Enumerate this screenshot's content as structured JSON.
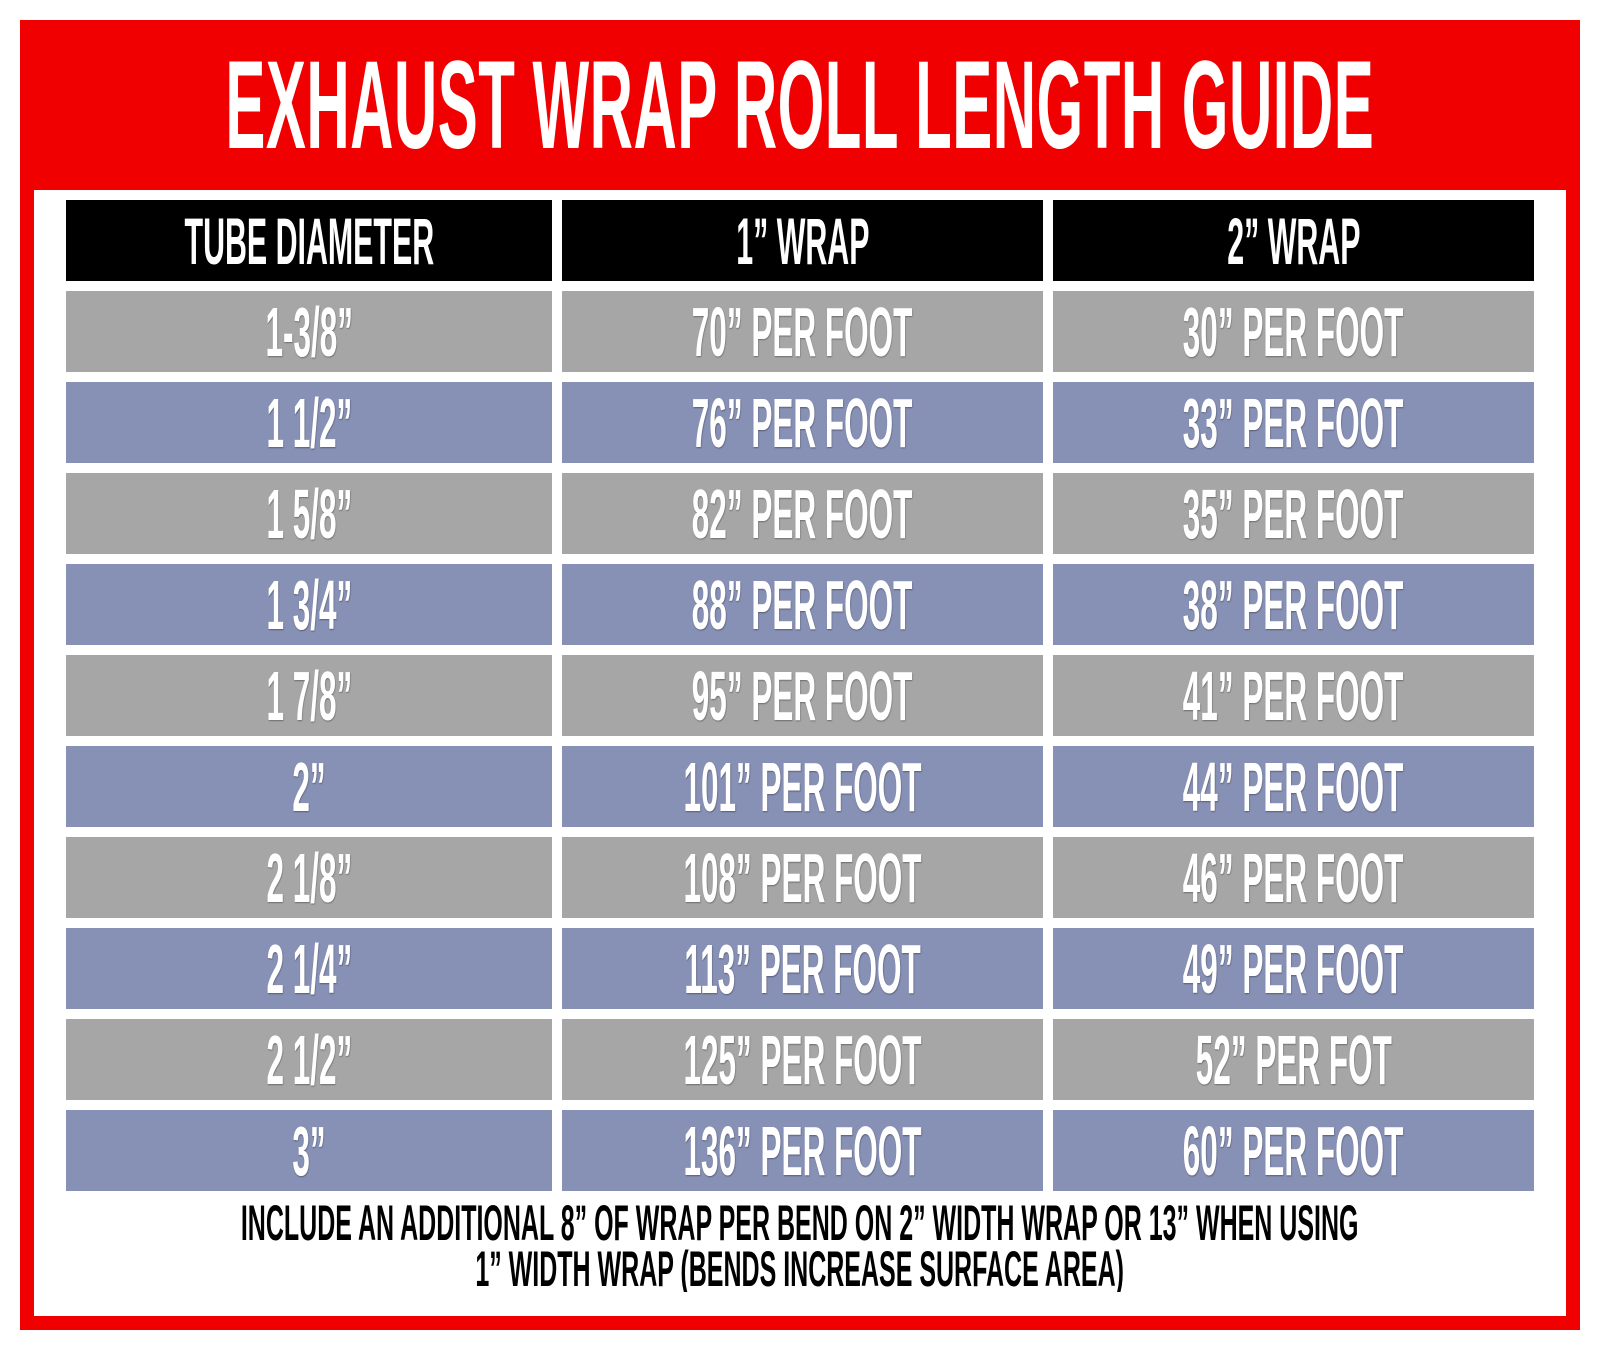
{
  "header": {
    "title": "EXHAUST WRAP ROLL LENGTH GUIDE"
  },
  "table": {
    "columns": [
      "TUBE DIAMETER",
      "1” WRAP",
      "2” WRAP"
    ],
    "rows": [
      [
        "1-3/8”",
        "70” PER FOOT",
        "30” PER FOOT"
      ],
      [
        "1 1/2”",
        "76” PER FOOT",
        "33” PER FOOT"
      ],
      [
        "1 5/8”",
        "82” PER FOOT",
        "35” PER FOOT"
      ],
      [
        "1 3/4”",
        "88” PER FOOT",
        "38” PER FOOT"
      ],
      [
        "1 7/8”",
        "95” PER FOOT",
        "41” PER FOOT"
      ],
      [
        "2”",
        "101” PER FOOT",
        "44” PER FOOT"
      ],
      [
        "2 1/8”",
        "108” PER FOOT",
        "46” PER FOOT"
      ],
      [
        "2 1/4”",
        "113” PER FOOT",
        "49” PER FOOT"
      ],
      [
        "2 1/2”",
        "125” PER FOOT",
        "52” PER FOT"
      ],
      [
        "3”",
        "136” PER FOOT",
        "60” PER FOOT"
      ]
    ]
  },
  "footer": {
    "lines": [
      "INCLUDE AN ADDITIONAL 8” OF WRAP PER BEND ON 2” WIDTH WRAP OR 13” WHEN USING",
      "1” WIDTH WRAP (BENDS INCREASE SURFACE AREA)"
    ]
  }
}
